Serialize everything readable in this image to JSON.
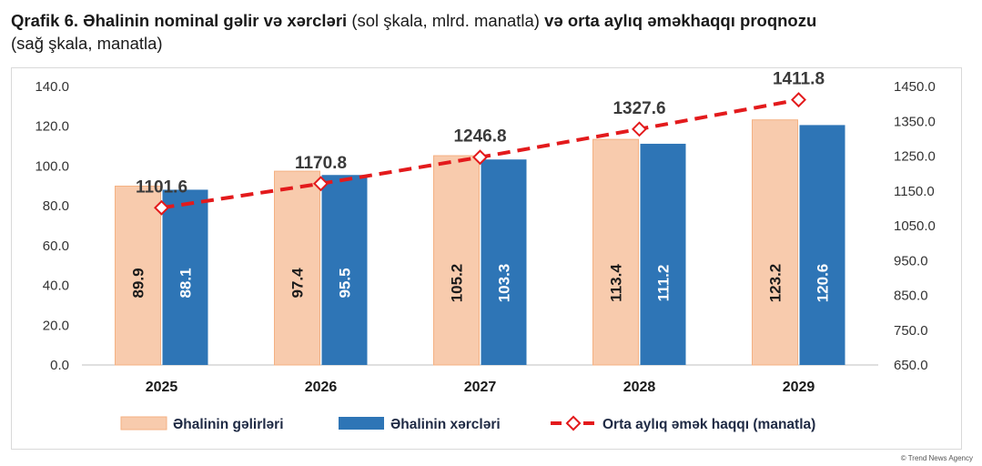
{
  "title": {
    "bold1": "Qrafik 6. Əhalinin nominal gəlir və xərcləri",
    "normal1": " (sol şkala, mlrd. manatla) ",
    "bold2": "və orta aylıq əməkhaqqı proqnozu",
    "normal2": "(sağ şkala, manatla)"
  },
  "credit": "© Trend News Agency",
  "colors": {
    "income": "#f8cbad",
    "income_border": "#f4b183",
    "expense": "#2e75b6",
    "line": "#e31a1c"
  },
  "chart_data": {
    "type": "bar",
    "categories": [
      "2025",
      "2026",
      "2027",
      "2028",
      "2029"
    ],
    "series": [
      {
        "name": "Əhalinin gəlirləri",
        "type": "bar",
        "axis": "left",
        "values": [
          89.9,
          97.4,
          105.2,
          113.4,
          123.2
        ]
      },
      {
        "name": "Əhalinin xərcləri",
        "type": "bar",
        "axis": "left",
        "values": [
          88.1,
          95.5,
          103.3,
          111.2,
          120.6
        ]
      },
      {
        "name": "Orta aylıq əmək haqqı (manatla)",
        "type": "line",
        "axis": "right",
        "values": [
          1101.6,
          1170.8,
          1246.8,
          1327.6,
          1411.8
        ]
      }
    ],
    "left_axis": {
      "min": 0,
      "max": 140,
      "ticks": [
        "0.0",
        "20.0",
        "40.0",
        "60.0",
        "80.0",
        "100.0",
        "120.0",
        "140.0"
      ]
    },
    "right_axis": {
      "min": 650,
      "max": 1450,
      "ticks": [
        "650.0",
        "750.0",
        "850.0",
        "950.0",
        "1050.0",
        "1150.0",
        "1250.0",
        "1350.0",
        "1450.0"
      ]
    },
    "value_labels_bars": [
      "89.9",
      "97.4",
      "105.2",
      "113.4",
      "123.2",
      "88.1",
      "95.5",
      "103.3",
      "111.2",
      "120.6"
    ],
    "value_labels_line": [
      "1101.6",
      "1170.8",
      "1246.8",
      "1327.6",
      "1411.8"
    ],
    "grid": false,
    "legend": "bottom"
  }
}
